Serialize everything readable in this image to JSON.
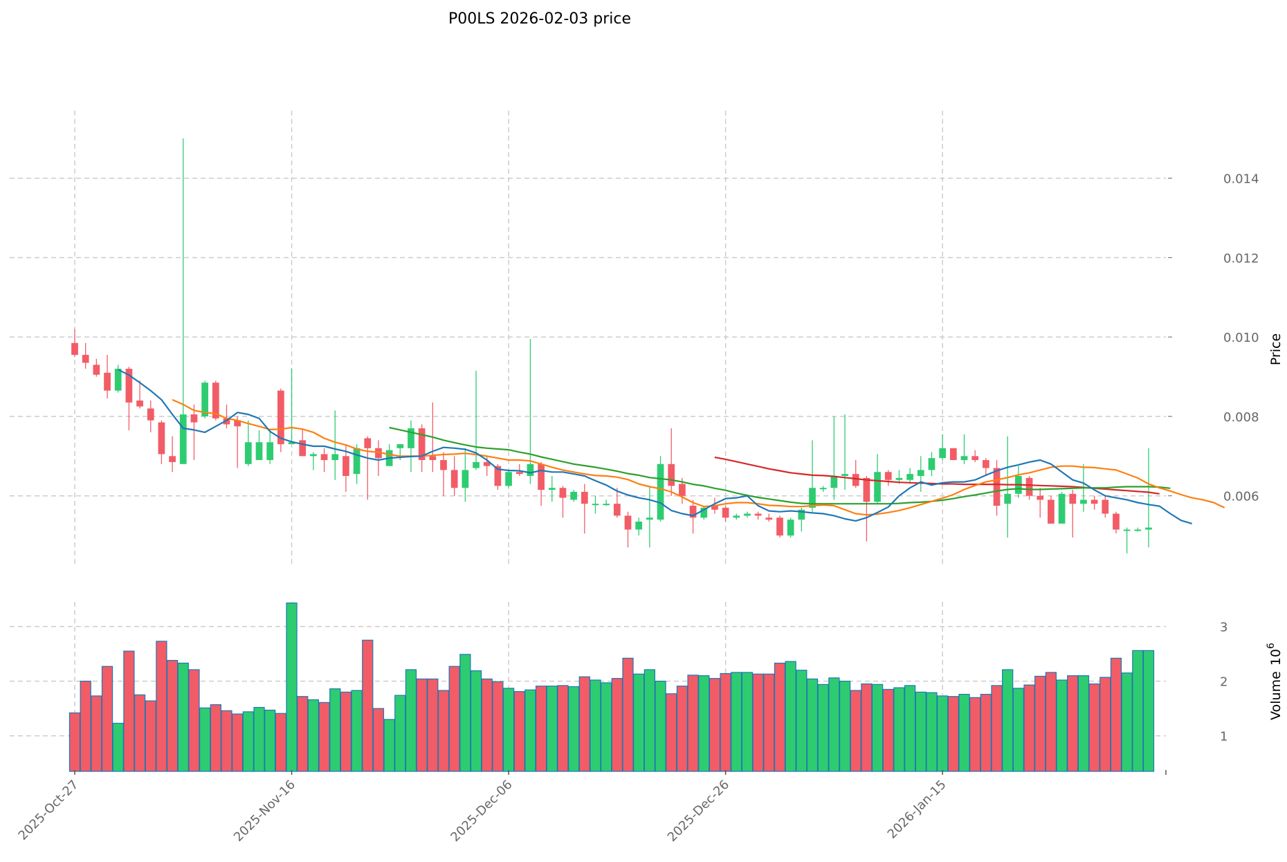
{
  "chart_data": {
    "type": "candlestick",
    "title": "P00LS  2026-02-03  price",
    "price_axis": {
      "label": "Price",
      "ylim": [
        0.0042,
        0.0157
      ],
      "ticks": [
        0.006,
        0.008,
        0.01,
        0.012,
        0.014
      ],
      "tick_labels": [
        "0.006",
        "0.008",
        "0.010",
        "0.012",
        "0.014"
      ],
      "grid": true
    },
    "volume_axis": {
      "label": "Volume",
      "exponent_label": "10",
      "exponent_power": "6",
      "ylim": [
        0.35,
        3.45
      ],
      "ticks": [
        1,
        2,
        3
      ],
      "tick_labels": [
        "1",
        "2",
        "3"
      ],
      "grid": true
    },
    "x_axis": {
      "n_days": 100,
      "ticks": [
        0,
        20,
        40,
        60,
        80
      ],
      "tick_labels": [
        "2025-Oct-27",
        "2025-Nov-16",
        "2025-Dec-06",
        "2025-Dec-26",
        "2026-Jan-15"
      ],
      "grid": true
    },
    "colors": {
      "up": "#2ecc71",
      "down": "#f25c66",
      "volume_edge": "#1f77b4",
      "grid": "#cccccc",
      "ma_short": "#1f77b4",
      "ma_mid": "#ff7f0e",
      "ma_long": "#2ca02c",
      "ma_longest": "#d62728",
      "tick_text": "#666666"
    },
    "candles": [
      [
        0.00985,
        0.0102,
        0.0095,
        0.00955
      ],
      [
        0.00955,
        0.00985,
        0.0092,
        0.00935
      ],
      [
        0.0093,
        0.00945,
        0.009,
        0.00905
      ],
      [
        0.0091,
        0.00955,
        0.00845,
        0.00865
      ],
      [
        0.00865,
        0.0093,
        0.0086,
        0.0092
      ],
      [
        0.0092,
        0.00925,
        0.00765,
        0.00835
      ],
      [
        0.0084,
        0.0089,
        0.0082,
        0.00825
      ],
      [
        0.0082,
        0.0084,
        0.0076,
        0.0079
      ],
      [
        0.00785,
        0.0079,
        0.0068,
        0.00705
      ],
      [
        0.007,
        0.0075,
        0.0066,
        0.00685
      ],
      [
        0.0068,
        0.015,
        0.0068,
        0.00805
      ],
      [
        0.00805,
        0.0083,
        0.0069,
        0.00785
      ],
      [
        0.008,
        0.0089,
        0.00795,
        0.00885
      ],
      [
        0.00885,
        0.0089,
        0.0079,
        0.00795
      ],
      [
        0.00795,
        0.0083,
        0.0077,
        0.0078
      ],
      [
        0.0079,
        0.008,
        0.0067,
        0.00775
      ],
      [
        0.0068,
        0.0079,
        0.00675,
        0.00735
      ],
      [
        0.0069,
        0.00765,
        0.0069,
        0.00735
      ],
      [
        0.0069,
        0.00765,
        0.0068,
        0.00735
      ],
      [
        0.00865,
        0.0087,
        0.0071,
        0.0073
      ],
      [
        0.0073,
        0.0092,
        0.0073,
        0.00735
      ],
      [
        0.0074,
        0.0077,
        0.007,
        0.007
      ],
      [
        0.007,
        0.0071,
        0.00665,
        0.00705
      ],
      [
        0.00705,
        0.0072,
        0.0066,
        0.0069
      ],
      [
        0.0069,
        0.00815,
        0.0064,
        0.00705
      ],
      [
        0.007,
        0.0073,
        0.0061,
        0.0065
      ],
      [
        0.00655,
        0.0073,
        0.0063,
        0.0072
      ],
      [
        0.00745,
        0.0075,
        0.0059,
        0.0072
      ],
      [
        0.0072,
        0.0074,
        0.0065,
        0.00695
      ],
      [
        0.00675,
        0.0073,
        0.00675,
        0.00715
      ],
      [
        0.0072,
        0.0073,
        0.0069,
        0.0073
      ],
      [
        0.0072,
        0.0079,
        0.0066,
        0.0077
      ],
      [
        0.0077,
        0.0078,
        0.0066,
        0.0069
      ],
      [
        0.007,
        0.00835,
        0.0066,
        0.0069
      ],
      [
        0.0069,
        0.0071,
        0.006,
        0.00665
      ],
      [
        0.00665,
        0.007,
        0.006,
        0.0062
      ],
      [
        0.0062,
        0.0072,
        0.00585,
        0.00665
      ],
      [
        0.0067,
        0.00915,
        0.00665,
        0.00685
      ],
      [
        0.00685,
        0.007,
        0.0065,
        0.00675
      ],
      [
        0.00675,
        0.0068,
        0.00615,
        0.00625
      ],
      [
        0.00625,
        0.00665,
        0.0062,
        0.0066
      ],
      [
        0.0066,
        0.0068,
        0.0065,
        0.00655
      ],
      [
        0.0065,
        0.00995,
        0.0063,
        0.0068
      ],
      [
        0.0068,
        0.00685,
        0.00575,
        0.00615
      ],
      [
        0.00615,
        0.0065,
        0.00585,
        0.0062
      ],
      [
        0.0062,
        0.00625,
        0.00545,
        0.00595
      ],
      [
        0.0059,
        0.00615,
        0.00585,
        0.0061
      ],
      [
        0.0061,
        0.0063,
        0.00505,
        0.0058
      ],
      [
        0.0058,
        0.006,
        0.00555,
        0.0058
      ],
      [
        0.0058,
        0.0059,
        0.00575,
        0.0058
      ],
      [
        0.0058,
        0.0062,
        0.00545,
        0.0055
      ],
      [
        0.0055,
        0.0056,
        0.0047,
        0.00515
      ],
      [
        0.00515,
        0.00545,
        0.005,
        0.00535
      ],
      [
        0.0054,
        0.00625,
        0.0047,
        0.00545
      ],
      [
        0.0054,
        0.007,
        0.00535,
        0.0068
      ],
      [
        0.0068,
        0.0077,
        0.006,
        0.00625
      ],
      [
        0.0063,
        0.00645,
        0.0058,
        0.006
      ],
      [
        0.00575,
        0.0059,
        0.00505,
        0.00545
      ],
      [
        0.00545,
        0.00575,
        0.0054,
        0.0057
      ],
      [
        0.00575,
        0.00595,
        0.00555,
        0.00565
      ],
      [
        0.0057,
        0.00575,
        0.00535,
        0.00545
      ],
      [
        0.00545,
        0.00555,
        0.0054,
        0.0055
      ],
      [
        0.0055,
        0.0056,
        0.00545,
        0.00555
      ],
      [
        0.00555,
        0.0056,
        0.0054,
        0.0055
      ],
      [
        0.00545,
        0.00555,
        0.00535,
        0.0054
      ],
      [
        0.00545,
        0.0055,
        0.00495,
        0.005
      ],
      [
        0.005,
        0.00545,
        0.00495,
        0.0054
      ],
      [
        0.0054,
        0.0057,
        0.0051,
        0.00565
      ],
      [
        0.0057,
        0.0074,
        0.0056,
        0.0062
      ],
      [
        0.0062,
        0.00625,
        0.0061,
        0.0062
      ],
      [
        0.0062,
        0.008,
        0.0059,
        0.0065
      ],
      [
        0.0065,
        0.00805,
        0.00615,
        0.00655
      ],
      [
        0.00655,
        0.0069,
        0.0062,
        0.00625
      ],
      [
        0.00645,
        0.0065,
        0.00485,
        0.00585
      ],
      [
        0.00585,
        0.00705,
        0.0058,
        0.0066
      ],
      [
        0.0066,
        0.00665,
        0.00625,
        0.0064
      ],
      [
        0.0064,
        0.00665,
        0.0063,
        0.00645
      ],
      [
        0.0064,
        0.0067,
        0.0063,
        0.00655
      ],
      [
        0.0065,
        0.007,
        0.0061,
        0.00665
      ],
      [
        0.00665,
        0.0071,
        0.0065,
        0.00695
      ],
      [
        0.00695,
        0.00755,
        0.0069,
        0.0072
      ],
      [
        0.0072,
        0.0072,
        0.0069,
        0.0069
      ],
      [
        0.0069,
        0.00755,
        0.0068,
        0.007
      ],
      [
        0.007,
        0.00715,
        0.00685,
        0.0069
      ],
      [
        0.0069,
        0.00695,
        0.0065,
        0.0067
      ],
      [
        0.0067,
        0.0069,
        0.0055,
        0.00575
      ],
      [
        0.0058,
        0.0075,
        0.00495,
        0.00605
      ],
      [
        0.00605,
        0.00675,
        0.00595,
        0.0065
      ],
      [
        0.00645,
        0.0065,
        0.0059,
        0.006
      ],
      [
        0.006,
        0.0062,
        0.00545,
        0.0059
      ],
      [
        0.0059,
        0.006,
        0.0053,
        0.0053
      ],
      [
        0.0053,
        0.0061,
        0.0053,
        0.00605
      ],
      [
        0.00605,
        0.00615,
        0.00495,
        0.0058
      ],
      [
        0.0058,
        0.0068,
        0.0056,
        0.0059
      ],
      [
        0.0059,
        0.006,
        0.00565,
        0.0058
      ],
      [
        0.0059,
        0.006,
        0.00545,
        0.00555
      ],
      [
        0.00555,
        0.0056,
        0.00505,
        0.00515
      ],
      [
        0.00515,
        0.0052,
        0.00455,
        0.00515
      ],
      [
        0.00515,
        0.0052,
        0.0051,
        0.00515
      ],
      [
        0.00515,
        0.0072,
        0.0047,
        0.0052
      ]
    ],
    "volume": [
      1.42,
      2.0,
      1.73,
      2.27,
      1.23,
      2.55,
      1.75,
      1.64,
      2.73,
      2.38,
      2.33,
      2.21,
      1.51,
      1.57,
      1.46,
      1.4,
      1.44,
      1.52,
      1.47,
      1.41,
      3.43,
      1.72,
      1.66,
      1.61,
      1.86,
      1.8,
      1.83,
      2.75,
      1.5,
      1.3,
      1.74,
      2.21,
      2.04,
      2.04,
      1.83,
      2.27,
      2.49,
      2.19,
      2.04,
      1.99,
      1.87,
      1.81,
      1.84,
      1.91,
      1.91,
      1.92,
      1.9,
      2.08,
      2.02,
      1.97,
      2.05,
      2.42,
      2.13,
      2.21,
      2.0,
      1.77,
      1.91,
      2.11,
      2.1,
      2.05,
      2.14,
      2.16,
      2.16,
      2.13,
      2.13,
      2.33,
      2.36,
      2.2,
      2.04,
      1.94,
      2.06,
      2.0,
      1.83,
      1.95,
      1.94,
      1.85,
      1.88,
      1.92,
      1.8,
      1.79,
      1.73,
      1.72,
      1.76,
      1.7,
      1.76,
      1.92,
      2.21,
      1.87,
      1.93,
      2.09,
      2.16,
      2.02,
      2.1,
      2.1,
      1.95,
      2.07,
      2.42,
      2.15,
      2.56,
      2.56
    ],
    "ma_short": {
      "start": 4,
      "values": [
        0.00918,
        0.00904,
        0.00885,
        0.00865,
        0.00842,
        0.00805,
        0.0077,
        0.00766,
        0.0076,
        0.00775,
        0.0079,
        0.0081,
        0.00805,
        0.00795,
        0.00762,
        0.00745,
        0.00736,
        0.0073,
        0.00725,
        0.00725,
        0.00718,
        0.00712,
        0.00703,
        0.00695,
        0.0069,
        0.00695,
        0.00697,
        0.00699,
        0.007,
        0.00712,
        0.00722,
        0.0072,
        0.00717,
        0.00708,
        0.0069,
        0.00667,
        0.00664,
        0.00663,
        0.00658,
        0.00664,
        0.0066,
        0.0066,
        0.00655,
        0.0065,
        0.00638,
        0.00627,
        0.00612,
        0.00602,
        0.00595,
        0.0059,
        0.00582,
        0.00563,
        0.00555,
        0.0055,
        0.00565,
        0.0058,
        0.00593,
        0.00595,
        0.006,
        0.00575,
        0.00562,
        0.0056,
        0.00562,
        0.0056,
        0.00557,
        0.00555,
        0.0055,
        0.00542,
        0.00537,
        0.00545,
        0.00558,
        0.00572,
        0.006,
        0.0062,
        0.00635,
        0.00627,
        0.00633,
        0.00635,
        0.00635,
        0.0064,
        0.00652,
        0.00663,
        0.00672,
        0.00678,
        0.00685,
        0.0069,
        0.0068,
        0.0066,
        0.0064,
        0.00632,
        0.00615,
        0.006,
        0.00595,
        0.0059,
        0.00583,
        0.00578,
        0.00574,
        0.00555,
        0.00538,
        0.0053
      ]
    },
    "ma_mid": {
      "start": 9,
      "values": [
        0.00842,
        0.0083,
        0.00815,
        0.0081,
        0.00807,
        0.00795,
        0.0079,
        0.00782,
        0.00775,
        0.00767,
        0.00768,
        0.00772,
        0.00768,
        0.0076,
        0.00745,
        0.00735,
        0.00728,
        0.00718,
        0.00712,
        0.0071,
        0.00704,
        0.007,
        0.007,
        0.007,
        0.00702,
        0.00704,
        0.00705,
        0.00707,
        0.00704,
        0.007,
        0.00695,
        0.0069,
        0.0069,
        0.00688,
        0.0068,
        0.00672,
        0.00665,
        0.0066,
        0.00655,
        0.00651,
        0.0065,
        0.00647,
        0.00641,
        0.0063,
        0.00623,
        0.00618,
        0.0061,
        0.00597,
        0.00583,
        0.00573,
        0.00575,
        0.0058,
        0.00583,
        0.00583,
        0.0058,
        0.00576,
        0.00575,
        0.00573,
        0.00573,
        0.00575,
        0.00577,
        0.00575,
        0.00565,
        0.00555,
        0.00552,
        0.00554,
        0.00558,
        0.00563,
        0.0057,
        0.00578,
        0.00586,
        0.00594,
        0.00603,
        0.00616,
        0.00626,
        0.00635,
        0.0064,
        0.00646,
        0.00653,
        0.00658,
        0.00665,
        0.00672,
        0.00675,
        0.00675,
        0.00672,
        0.00671,
        0.00668,
        0.00665,
        0.00655,
        0.00645,
        0.0063,
        0.0062,
        0.00612,
        0.00603,
        0.00595,
        0.0059,
        0.00583,
        0.0057
      ]
    },
    "ma_long": {
      "start": 29,
      "values": [
        0.00772,
        0.00766,
        0.0076,
        0.00754,
        0.00748,
        0.0074,
        0.00734,
        0.00728,
        0.00723,
        0.0072,
        0.00718,
        0.00716,
        0.0071,
        0.00705,
        0.00698,
        0.00692,
        0.00686,
        0.0068,
        0.00676,
        0.00672,
        0.00667,
        0.00662,
        0.00656,
        0.00652,
        0.00646,
        0.00643,
        0.0064,
        0.00635,
        0.00629,
        0.00625,
        0.00619,
        0.00614,
        0.00607,
        0.00601,
        0.00596,
        0.00592,
        0.00588,
        0.00584,
        0.00581,
        0.0058,
        0.0058,
        0.0058,
        0.0058,
        0.0058,
        0.0058,
        0.0058,
        0.0058,
        0.00581,
        0.00583,
        0.00584,
        0.00586,
        0.00589,
        0.00593,
        0.00598,
        0.00602,
        0.00607,
        0.00612,
        0.00616,
        0.00618,
        0.00616,
        0.00616,
        0.00617,
        0.00618,
        0.00619,
        0.0062,
        0.0062,
        0.0062,
        0.00622,
        0.00623,
        0.00623,
        0.00623,
        0.00622,
        0.00619
      ]
    },
    "ma_longest": {
      "start": 59,
      "values": [
        0.00697,
        0.00692,
        0.00686,
        0.0068,
        0.00674,
        0.00668,
        0.00663,
        0.00658,
        0.00655,
        0.00652,
        0.00651,
        0.00649,
        0.00646,
        0.00643,
        0.0064,
        0.00638,
        0.00636,
        0.00634,
        0.00633,
        0.00632,
        0.00631,
        0.0063,
        0.0063,
        0.00629,
        0.00629,
        0.00629,
        0.00629,
        0.00628,
        0.00628,
        0.00627,
        0.00626,
        0.00625,
        0.00624,
        0.00623,
        0.00621,
        0.00619,
        0.00617,
        0.00615,
        0.00613,
        0.00611,
        0.00609,
        0.00605
      ]
    }
  }
}
